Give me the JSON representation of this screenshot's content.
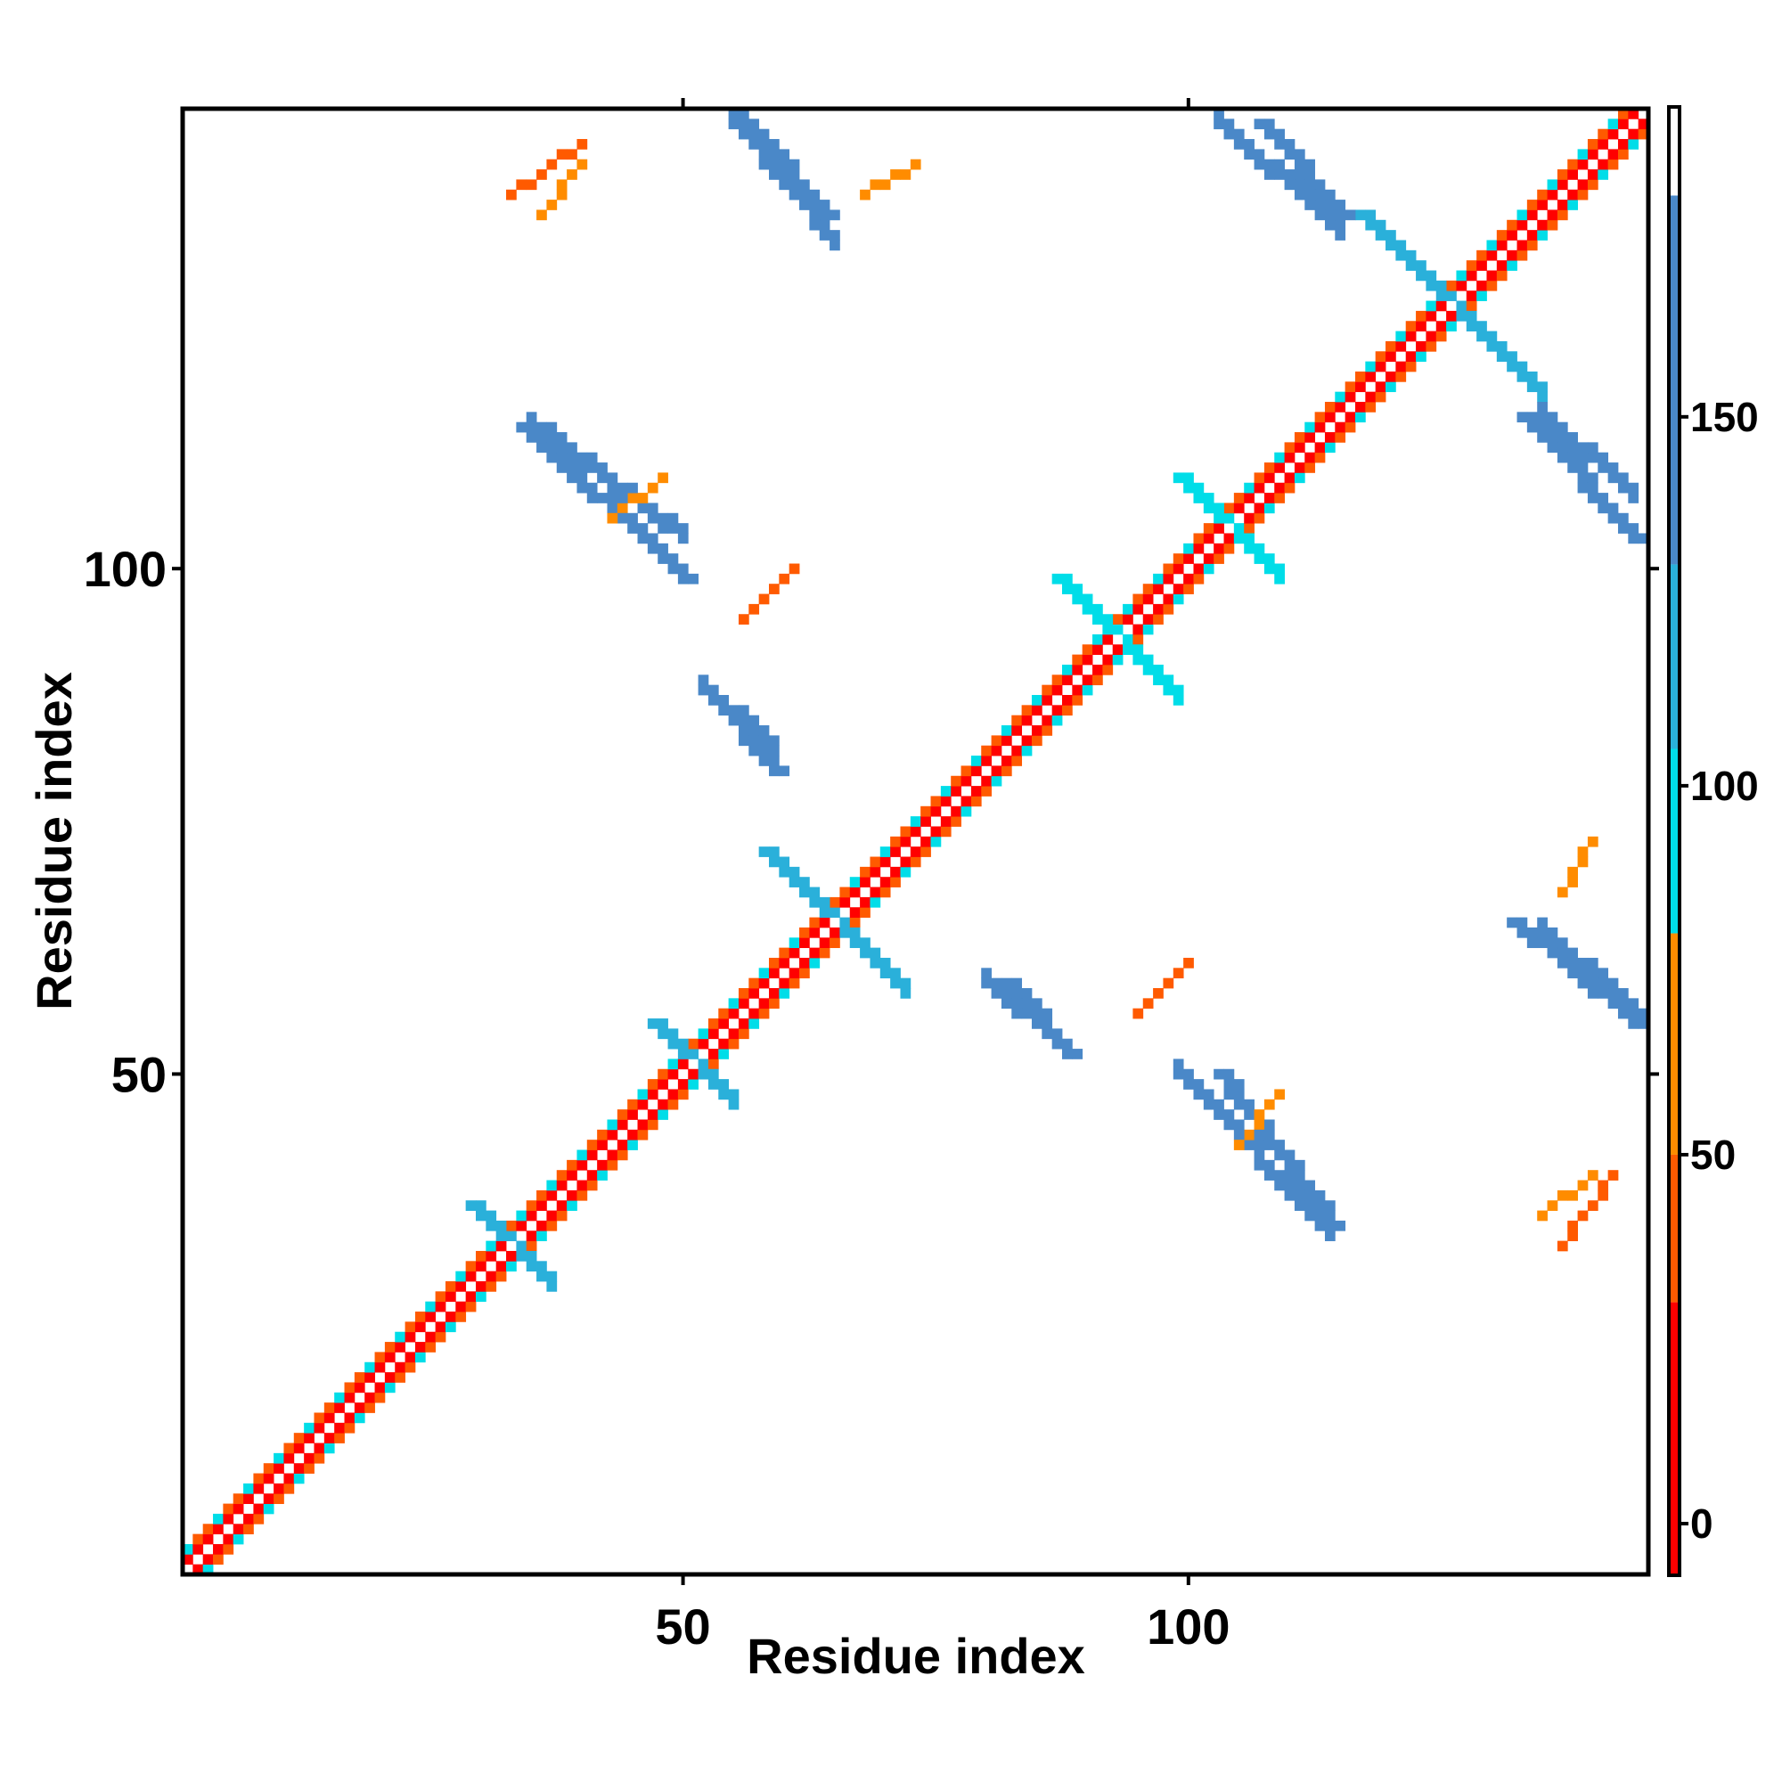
{
  "chart_data": {
    "type": "heatmap",
    "title": "",
    "xlabel": "Residue index",
    "ylabel": "Residue index",
    "xlim": [
      1,
      145
    ],
    "ylim": [
      1,
      145
    ],
    "x_ticks": [
      "50",
      "100"
    ],
    "y_ticks": [
      "50",
      "100"
    ],
    "colorbar": {
      "ticks": [
        "0",
        "50",
        "100",
        "150"
      ],
      "range": [
        -7,
        192
      ],
      "bands": [
        {
          "from": -7,
          "to": 30,
          "color": "#ff0000"
        },
        {
          "from": 30,
          "to": 50,
          "color": "#ff5a00"
        },
        {
          "from": 50,
          "to": 80,
          "color": "#ff8c00"
        },
        {
          "from": 80,
          "to": 105,
          "color": "#00dde8"
        },
        {
          "from": 105,
          "to": 130,
          "color": "#2ab0da"
        },
        {
          "from": 130,
          "to": 180,
          "color": "#4a88c8"
        },
        {
          "from": 180,
          "to": 192,
          "color": "#ffffff"
        }
      ]
    },
    "features": [
      {
        "kind": "diagonal",
        "from": 1,
        "to": 145,
        "value_near": 25,
        "value_far": 45
      },
      {
        "kind": "helix-off",
        "from": 1,
        "to": 145,
        "offset": 2,
        "value": 90
      },
      {
        "kind": "cross",
        "center": [
          33,
          33
        ],
        "arm": 4,
        "value": 110
      },
      {
        "kind": "cross",
        "center": [
          51,
          51
        ],
        "arm": 4,
        "value": 105
      },
      {
        "kind": "cross",
        "center": [
          65,
          65
        ],
        "arm": 7,
        "value": 125
      },
      {
        "kind": "cross",
        "center": [
          93,
          93
        ],
        "arm": 6,
        "value": 100
      },
      {
        "kind": "cross",
        "center": [
          104,
          104
        ],
        "arm": 5,
        "value": 100
      },
      {
        "kind": "cross",
        "center": [
          126,
          126
        ],
        "arm": 9,
        "value": 125
      },
      {
        "kind": "antiparallel",
        "x": [
          55,
          64
        ],
        "y": [
          145,
          135
        ],
        "value": 150
      },
      {
        "kind": "antiparallel",
        "x": [
          107,
          115
        ],
        "y": [
          144,
          135
        ],
        "value": 145
      },
      {
        "kind": "antiparallel",
        "x": [
          133,
          144
        ],
        "y": [
          115,
          103
        ],
        "value": 155
      },
      {
        "kind": "antiparallel",
        "x": [
          34,
          50
        ],
        "y": [
          114,
          99
        ],
        "value": 150
      },
      {
        "kind": "antiparallel",
        "x": [
          53,
          59
        ],
        "y": [
          87,
          80
        ],
        "value": 150
      },
      {
        "kind": "antiparallel",
        "x": [
          82,
          88
        ],
        "y": [
          59,
          52
        ],
        "value": 150
      },
      {
        "kind": "antiparallel",
        "x": [
          103,
          114
        ],
        "y": [
          50,
          35
        ],
        "value": 140
      },
      {
        "kind": "antiparallel",
        "x": [
          132,
          144
        ],
        "y": [
          65,
          55
        ],
        "value": 155
      },
      {
        "kind": "parallel",
        "x": [
          43,
          48
        ],
        "y": [
          105,
          109
        ],
        "value": 60
      },
      {
        "kind": "parallel",
        "x": [
          68,
          73
        ],
        "y": [
          137,
          140
        ],
        "value": 60
      },
      {
        "kind": "parallel",
        "x": [
          95,
          100
        ],
        "y": [
          56,
          61
        ],
        "value": 40
      },
      {
        "kind": "parallel",
        "x": [
          135,
          140
        ],
        "y": [
          36,
          40
        ],
        "value": 50
      },
      {
        "kind": "parallel",
        "x": [
          33,
          40
        ],
        "y": [
          137,
          142
        ],
        "value": 45
      }
    ]
  }
}
